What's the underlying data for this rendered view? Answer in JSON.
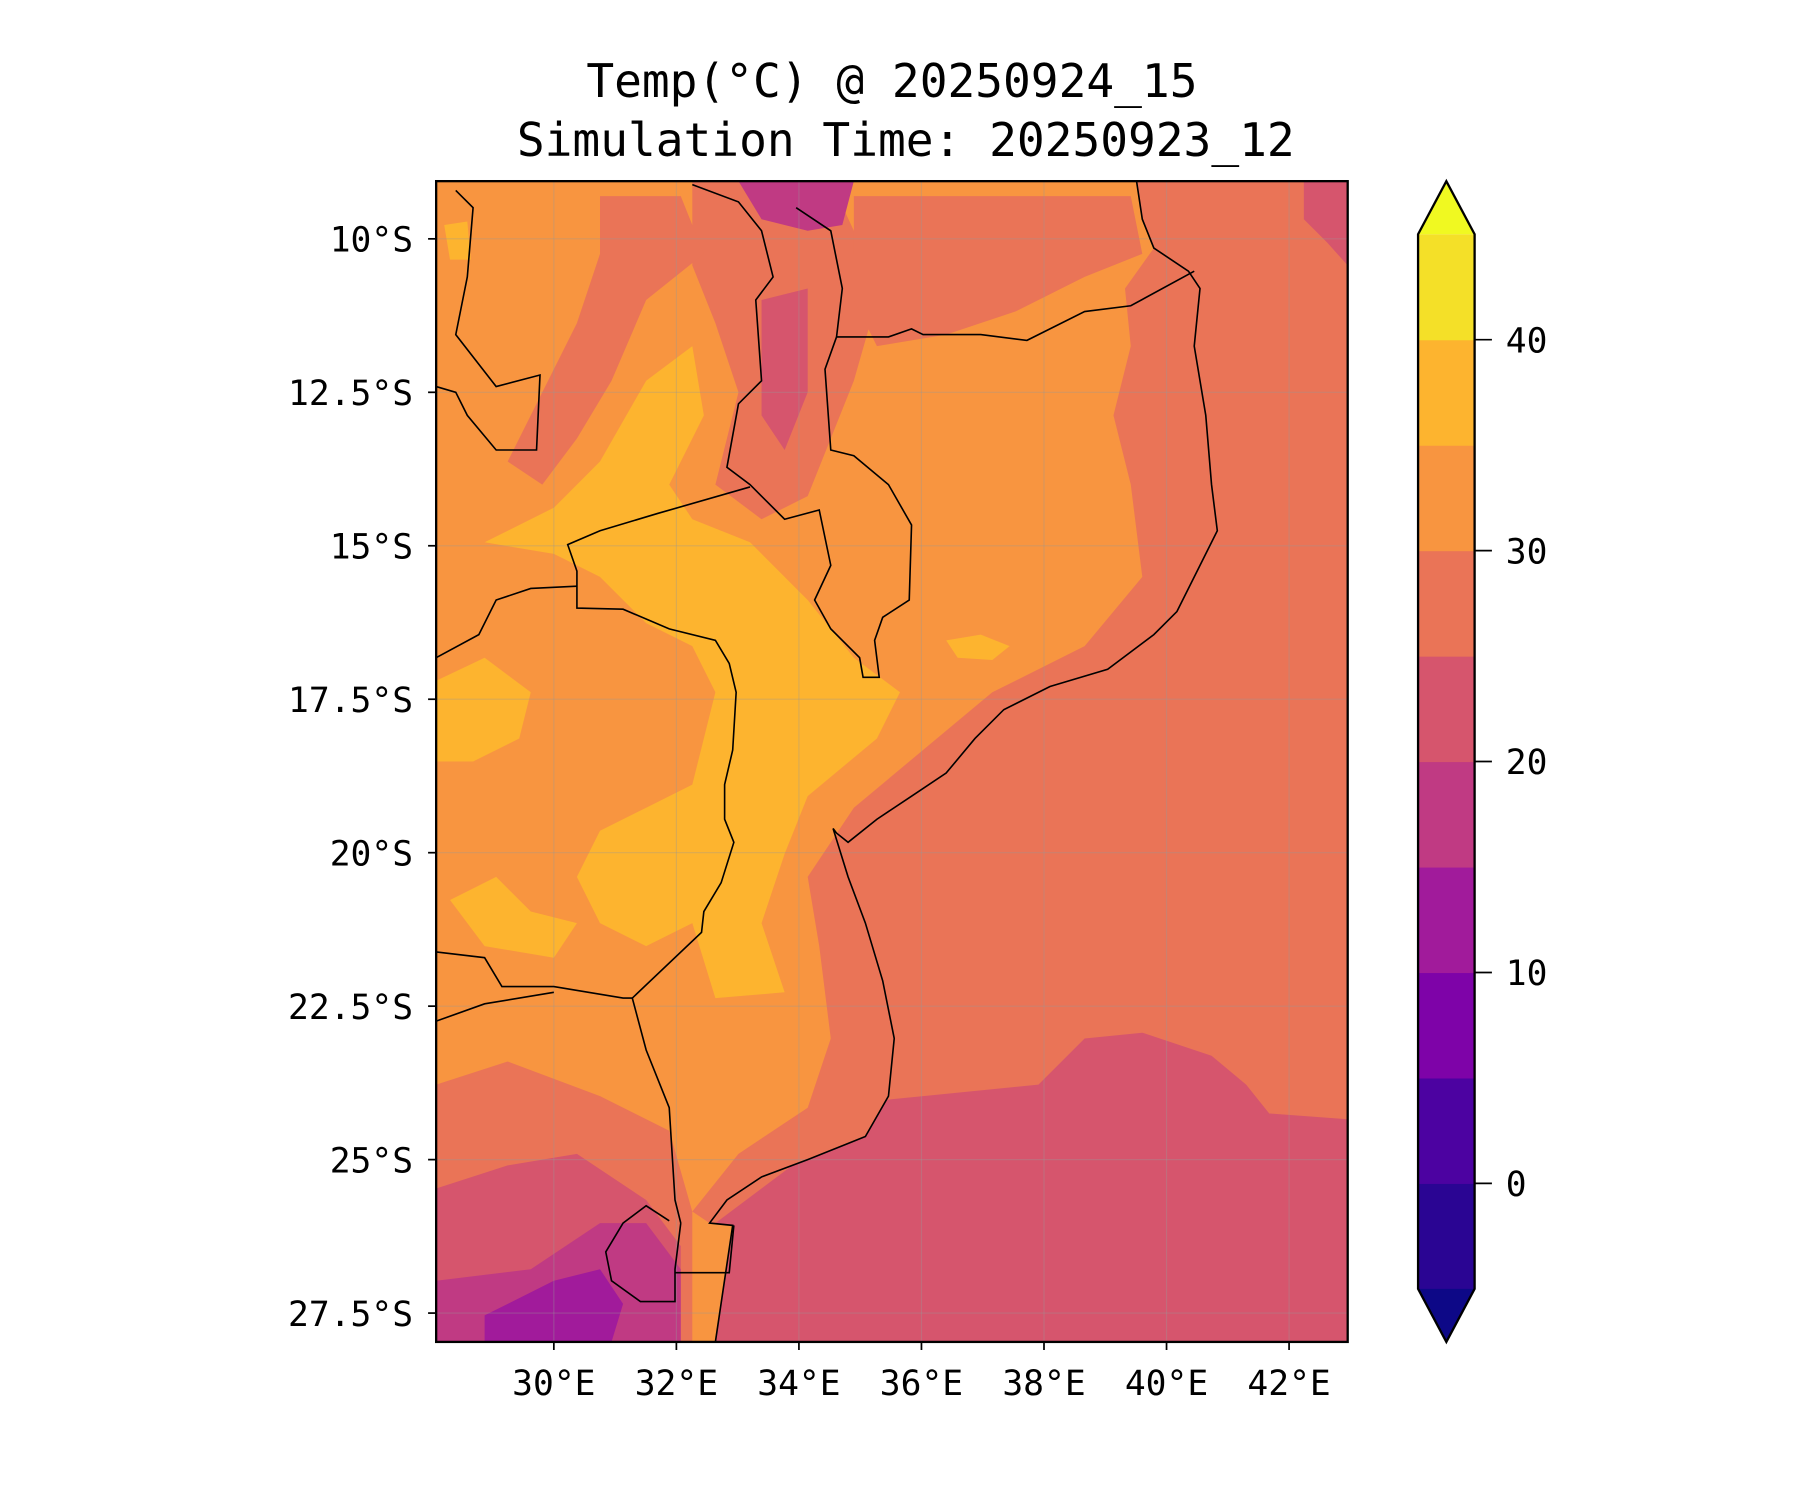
{
  "chart_data": {
    "type": "heatmap",
    "subtype": "filled-contour-map",
    "title_line1": "Temp(°C) @ 20250924_15",
    "title_line2": "Simulation Time: 20250923_12",
    "variable": "Temperature",
    "units": "°C",
    "extent": {
      "lon": [
        28.1,
        42.95
      ],
      "lat": [
        -27.95,
        -9.05
      ]
    },
    "x_ticks": [
      {
        "value": 30,
        "label": "30°E"
      },
      {
        "value": 32,
        "label": "32°E"
      },
      {
        "value": 34,
        "label": "34°E"
      },
      {
        "value": 36,
        "label": "36°E"
      },
      {
        "value": 38,
        "label": "38°E"
      },
      {
        "value": 40,
        "label": "40°E"
      },
      {
        "value": 42,
        "label": "42°E"
      }
    ],
    "y_ticks": [
      {
        "value": -10,
        "label": "10°S"
      },
      {
        "value": -12.5,
        "label": "12.5°S"
      },
      {
        "value": -15,
        "label": "15°S"
      },
      {
        "value": -17.5,
        "label": "17.5°S"
      },
      {
        "value": -20,
        "label": "20°S"
      },
      {
        "value": -22.5,
        "label": "22.5°S"
      },
      {
        "value": -25,
        "label": "25°S"
      },
      {
        "value": -27.5,
        "label": "27.5°S"
      }
    ],
    "grid": true,
    "colorbar": {
      "position": "right",
      "extend": "both",
      "levels": [
        -5,
        0,
        5,
        10,
        15,
        20,
        25,
        30,
        35,
        40,
        45
      ],
      "colors": [
        "#2a0593",
        "#4c02a1",
        "#7e03a8",
        "#a11b9b",
        "#c03a83",
        "#d6556d",
        "#ea7457",
        "#f89540",
        "#fdb42f",
        "#f4e028"
      ],
      "under_color": "#0d0887",
      "over_color": "#f0f921",
      "ticks": [
        {
          "value": 0,
          "label": "0"
        },
        {
          "value": 10,
          "label": "10"
        },
        {
          "value": 20,
          "label": "20"
        },
        {
          "value": 30,
          "label": "30"
        },
        {
          "value": 40,
          "label": "40"
        }
      ]
    },
    "summary": {
      "ocean_north_of_24S": "25-30",
      "ocean_south_of_24S": "20-25",
      "interior_lowlands": "35-40",
      "most_land": "30-35",
      "southwest_highlands_min": "10-15"
    }
  }
}
